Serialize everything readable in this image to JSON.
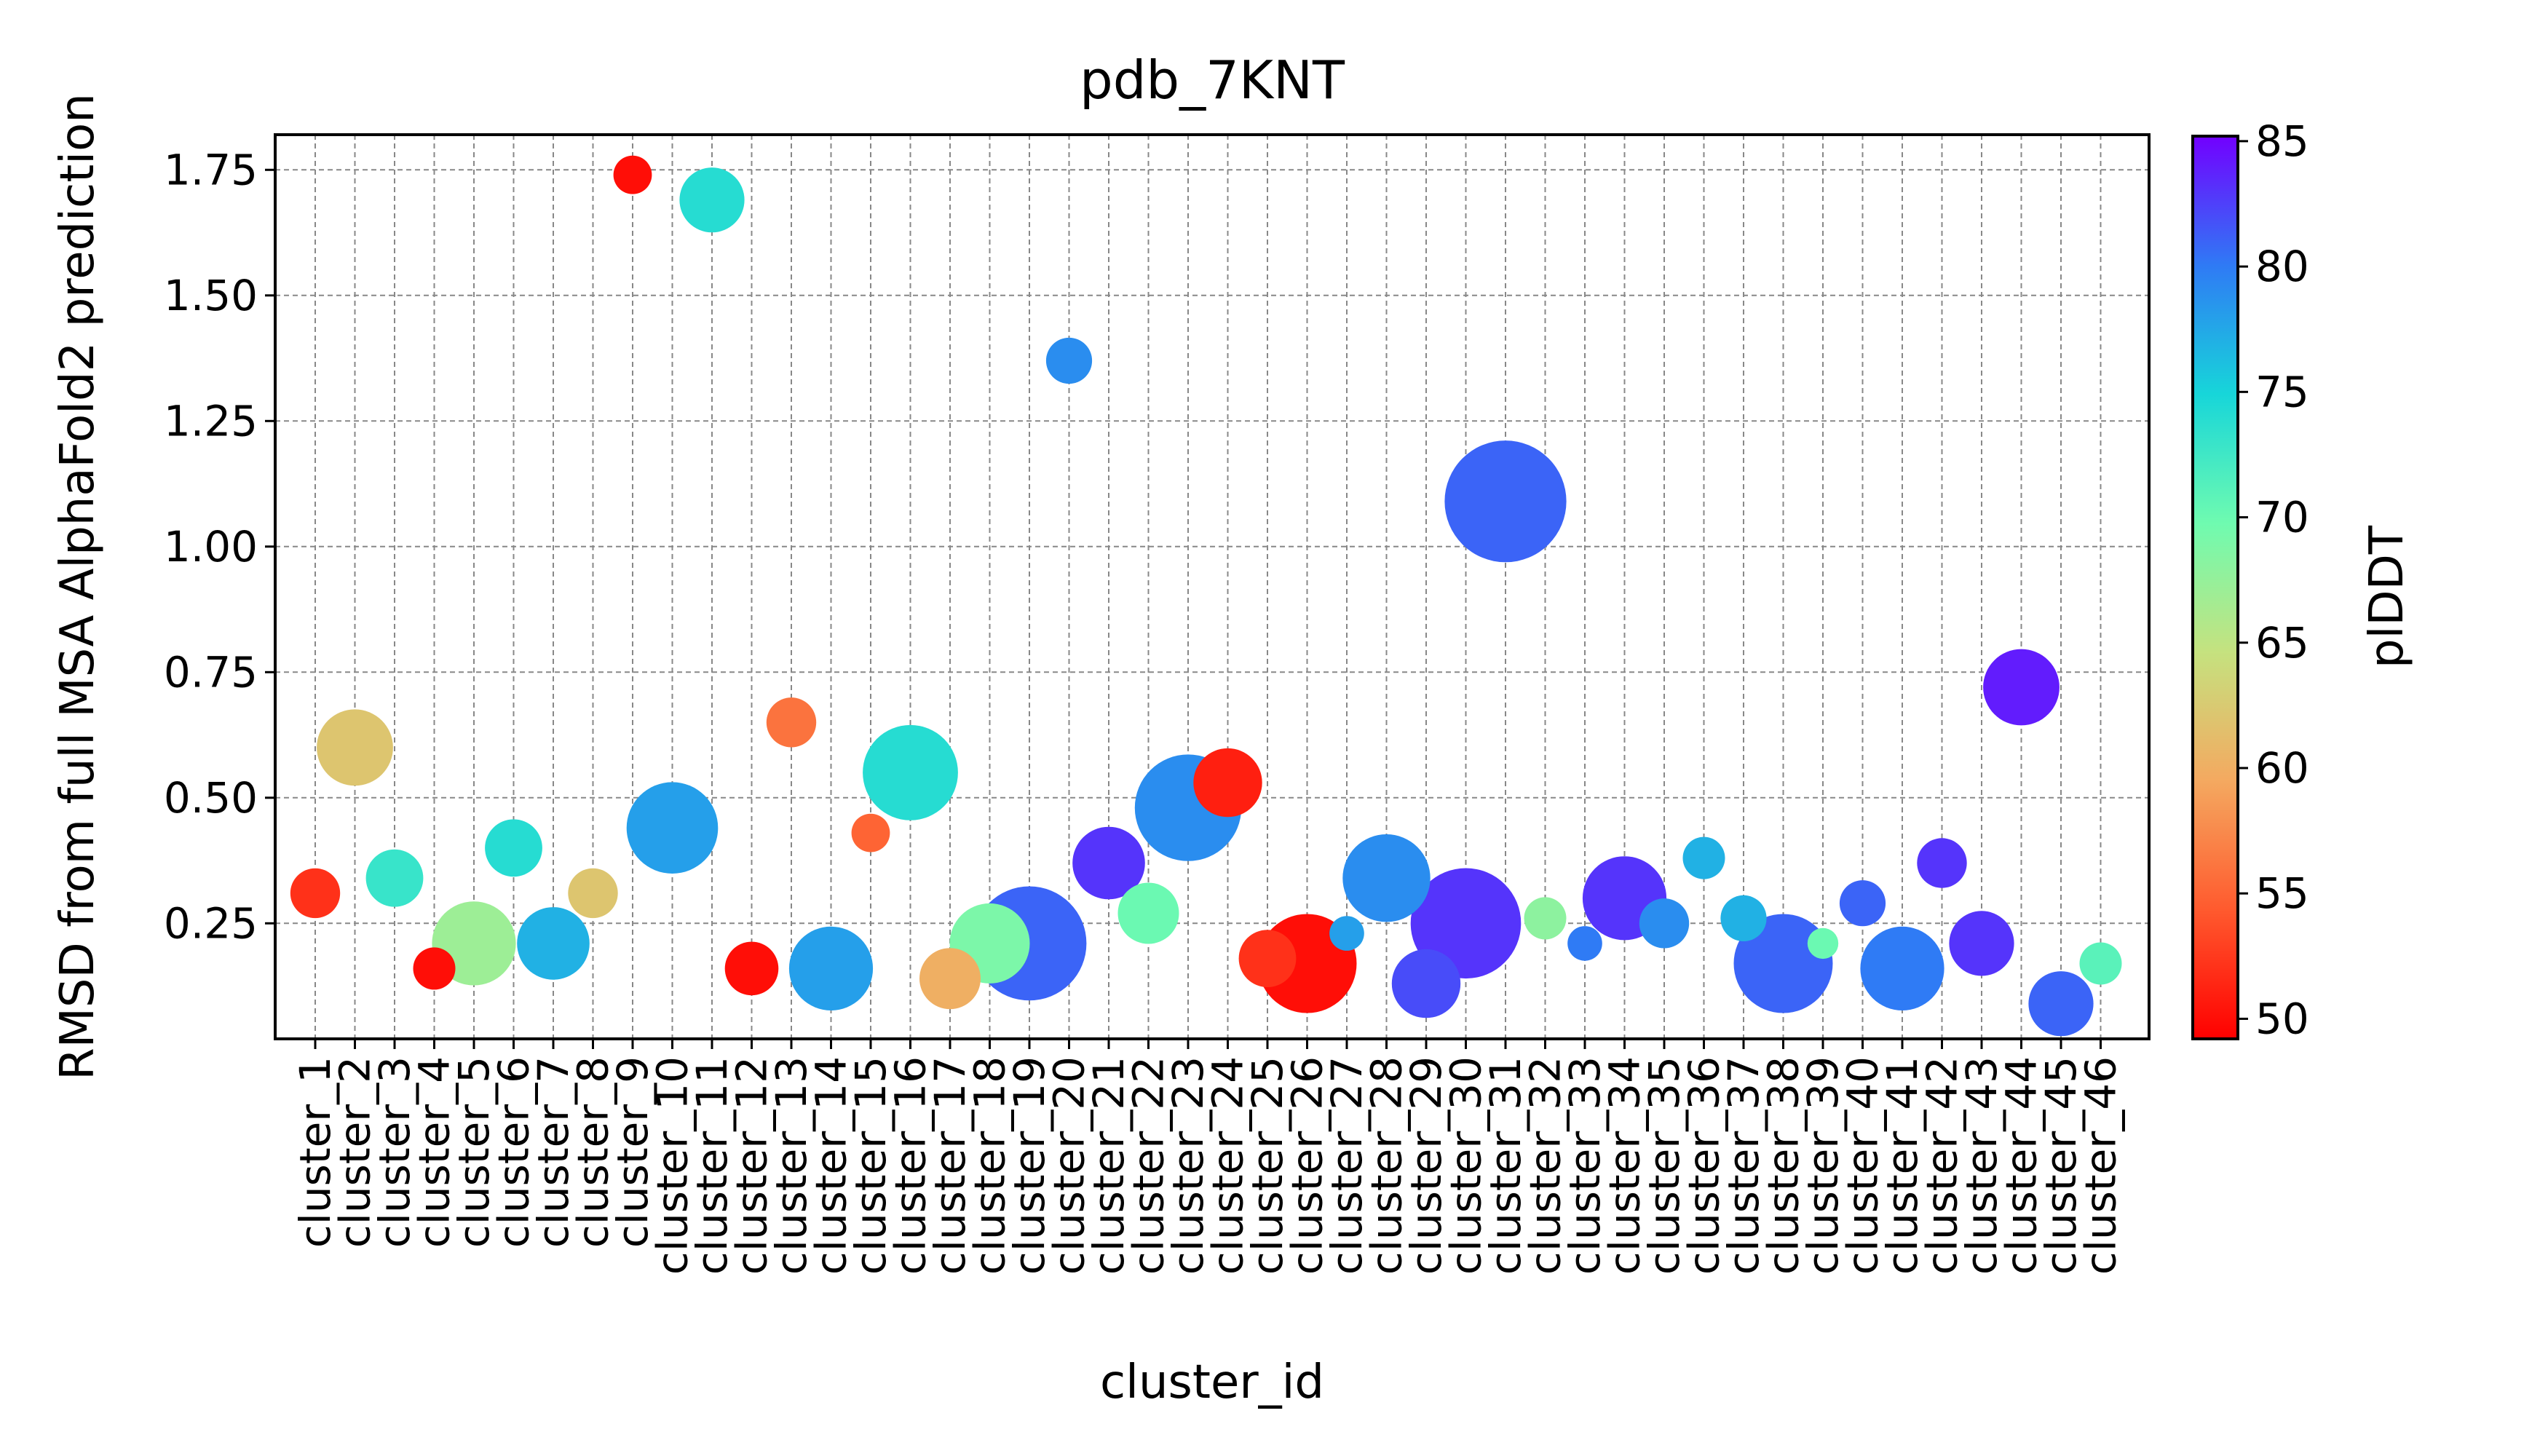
{
  "chart_data": {
    "type": "scatter",
    "title": "pdb_7KNT",
    "xlabel": "cluster_id",
    "ylabel": "RMSD from full MSA AlphaFold2 prediction",
    "colorbar_label": "plDDT",
    "colormap": "rainbow",
    "color_range": [
      49.2,
      85.2
    ],
    "colorbar_ticks": [
      "50",
      "55",
      "60",
      "65",
      "70",
      "75",
      "80",
      "85"
    ],
    "ylim": [
      0.02,
      1.82
    ],
    "yticks": [
      "0.25",
      "0.50",
      "0.75",
      "1.00",
      "1.25",
      "1.50",
      "1.75"
    ],
    "grid": true,
    "categories": [
      "cluster_1",
      "cluster_2",
      "cluster_3",
      "cluster_4",
      "cluster_5",
      "cluster_6",
      "cluster_7",
      "cluster_8",
      "cluster_9",
      "cluster_10",
      "cluster_11",
      "cluster_12",
      "cluster_13",
      "cluster_14",
      "cluster_15",
      "cluster_16",
      "cluster_17",
      "cluster_18",
      "cluster_19",
      "cluster_20",
      "cluster_21",
      "cluster_22",
      "cluster_23",
      "cluster_24",
      "cluster_25",
      "cluster_26",
      "cluster_27",
      "cluster_28",
      "cluster_29",
      "cluster_30",
      "cluster_31",
      "cluster_32",
      "cluster_33",
      "cluster_34",
      "cluster_35",
      "cluster_36",
      "cluster_37",
      "cluster_38",
      "cluster_39",
      "cluster_40",
      "cluster_41",
      "cluster_42",
      "cluster_43",
      "cluster_44",
      "cluster_45",
      "cluster_46"
    ],
    "points": [
      {
        "cluster": "cluster_1",
        "rmsd": 0.31,
        "plddt": 52,
        "size": 7
      },
      {
        "cluster": "cluster_2",
        "rmsd": 0.6,
        "plddt": 62,
        "size": 14
      },
      {
        "cluster": "cluster_3",
        "rmsd": 0.34,
        "plddt": 73,
        "size": 9
      },
      {
        "cluster": "cluster_4",
        "rmsd": 0.16,
        "plddt": 50,
        "size": 5
      },
      {
        "cluster": "cluster_5",
        "rmsd": 0.21,
        "plddt": 67,
        "size": 16
      },
      {
        "cluster": "cluster_6",
        "rmsd": 0.4,
        "plddt": 74,
        "size": 9
      },
      {
        "cluster": "cluster_7",
        "rmsd": 0.21,
        "plddt": 77,
        "size": 13
      },
      {
        "cluster": "cluster_8",
        "rmsd": 0.31,
        "plddt": 62,
        "size": 7
      },
      {
        "cluster": "cluster_9",
        "rmsd": 1.74,
        "plddt": 50,
        "size": 4
      },
      {
        "cluster": "cluster_10",
        "rmsd": 0.44,
        "plddt": 78,
        "size": 18
      },
      {
        "cluster": "cluster_11",
        "rmsd": 1.69,
        "plddt": 74,
        "size": 11
      },
      {
        "cluster": "cluster_12",
        "rmsd": 0.16,
        "plddt": 50,
        "size": 8
      },
      {
        "cluster": "cluster_13",
        "rmsd": 0.65,
        "plddt": 56,
        "size": 7
      },
      {
        "cluster": "cluster_14",
        "rmsd": 0.16,
        "plddt": 78,
        "size": 16
      },
      {
        "cluster": "cluster_15",
        "rmsd": 0.43,
        "plddt": 55,
        "size": 4
      },
      {
        "cluster": "cluster_16",
        "rmsd": 0.55,
        "plddt": 74,
        "size": 19
      },
      {
        "cluster": "cluster_17",
        "rmsd": 0.14,
        "plddt": 60,
        "size": 10
      },
      {
        "cluster": "cluster_18",
        "rmsd": 0.21,
        "plddt": 69,
        "size": 15
      },
      {
        "cluster": "cluster_19",
        "rmsd": 0.21,
        "plddt": 81,
        "size": 24
      },
      {
        "cluster": "cluster_20",
        "rmsd": 1.37,
        "plddt": 79,
        "size": 6
      },
      {
        "cluster": "cluster_21",
        "rmsd": 0.37,
        "plddt": 83,
        "size": 13
      },
      {
        "cluster": "cluster_22",
        "rmsd": 0.27,
        "plddt": 70,
        "size": 10
      },
      {
        "cluster": "cluster_23",
        "rmsd": 0.48,
        "plddt": 79,
        "size": 22
      },
      {
        "cluster": "cluster_24",
        "rmsd": 0.53,
        "plddt": 51,
        "size": 12
      },
      {
        "cluster": "cluster_25",
        "rmsd": 0.18,
        "plddt": 52,
        "size": 9
      },
      {
        "cluster": "cluster_26",
        "rmsd": 0.17,
        "plddt": 50,
        "size": 20
      },
      {
        "cluster": "cluster_27",
        "rmsd": 0.23,
        "plddt": 78,
        "size": 3
      },
      {
        "cluster": "cluster_28",
        "rmsd": 0.34,
        "plddt": 79,
        "size": 17
      },
      {
        "cluster": "cluster_29",
        "rmsd": 0.13,
        "plddt": 82,
        "size": 12
      },
      {
        "cluster": "cluster_30",
        "rmsd": 0.25,
        "plddt": 83,
        "size": 23
      },
      {
        "cluster": "cluster_31",
        "rmsd": 1.09,
        "plddt": 81,
        "size": 26
      },
      {
        "cluster": "cluster_32",
        "rmsd": 0.26,
        "plddt": 68,
        "size": 5
      },
      {
        "cluster": "cluster_33",
        "rmsd": 0.21,
        "plddt": 80,
        "size": 3
      },
      {
        "cluster": "cluster_34",
        "rmsd": 0.3,
        "plddt": 83,
        "size": 16
      },
      {
        "cluster": "cluster_35",
        "rmsd": 0.25,
        "plddt": 79,
        "size": 7
      },
      {
        "cluster": "cluster_36",
        "rmsd": 0.38,
        "plddt": 77,
        "size": 5
      },
      {
        "cluster": "cluster_37",
        "rmsd": 0.26,
        "plddt": 77,
        "size": 6
      },
      {
        "cluster": "cluster_38",
        "rmsd": 0.17,
        "plddt": 81,
        "size": 20
      },
      {
        "cluster": "cluster_39",
        "rmsd": 0.21,
        "plddt": 70,
        "size": 2
      },
      {
        "cluster": "cluster_40",
        "rmsd": 0.29,
        "plddt": 81,
        "size": 6
      },
      {
        "cluster": "cluster_41",
        "rmsd": 0.16,
        "plddt": 80,
        "size": 16
      },
      {
        "cluster": "cluster_42",
        "rmsd": 0.37,
        "plddt": 83,
        "size": 7
      },
      {
        "cluster": "cluster_43",
        "rmsd": 0.21,
        "plddt": 83,
        "size": 11
      },
      {
        "cluster": "cluster_44",
        "rmsd": 0.72,
        "plddt": 84,
        "size": 14
      },
      {
        "cluster": "cluster_45",
        "rmsd": 0.09,
        "plddt": 81,
        "size": 11
      },
      {
        "cluster": "cluster_46",
        "rmsd": 0.17,
        "plddt": 71,
        "size": 5
      }
    ]
  }
}
